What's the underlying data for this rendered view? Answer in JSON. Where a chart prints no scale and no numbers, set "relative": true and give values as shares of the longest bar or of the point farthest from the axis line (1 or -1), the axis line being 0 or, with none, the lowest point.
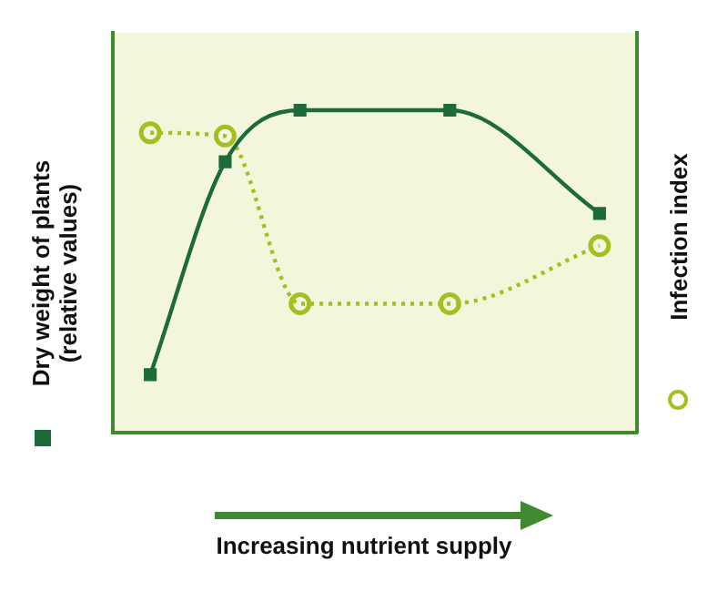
{
  "chart_data": {
    "type": "line",
    "relative": true,
    "xlabel": "Increasing nutrient supply",
    "ylabel": "Dry weight of plants (relative values)",
    "y2label": "Infection index",
    "categories": [
      null,
      null,
      null,
      null,
      null,
      null,
      null
    ],
    "series": [
      {
        "color": "#1e6b3a",
        "marker": "square",
        "line_style": "solid",
        "values": [
          0.18,
          0.84,
          1,
          null,
          1,
          null,
          0.68
        ]
      },
      {
        "color": "#a6bf1e",
        "marker": "circle",
        "line_style": "dotted",
        "values": [
          0.93,
          0.92,
          0.4,
          null,
          0.4,
          null,
          0.58
        ]
      }
    ],
    "grid": false,
    "legend": false
  }
}
